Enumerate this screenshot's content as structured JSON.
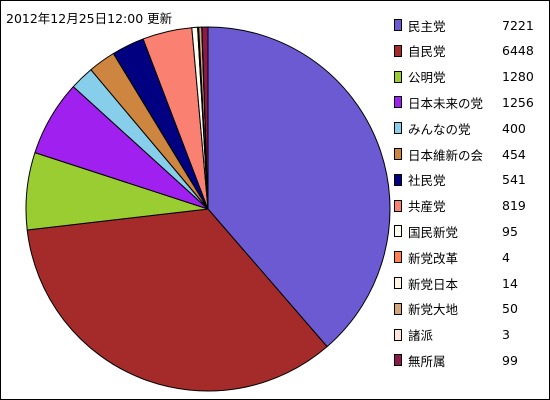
{
  "header": {
    "timestamp": "2012年12月25日12:00 更新"
  },
  "chart_data": {
    "type": "pie",
    "title": "",
    "legend_position": "right",
    "slices": [
      {
        "label": "民主党",
        "value": 7221,
        "color": "#6b5ad1"
      },
      {
        "label": "自民党",
        "value": 6448,
        "color": "#a52a2a"
      },
      {
        "label": "公明党",
        "value": 1280,
        "color": "#9acd32"
      },
      {
        "label": "日本未来の党",
        "value": 1256,
        "color": "#a020f0"
      },
      {
        "label": "みんなの党",
        "value": 400,
        "color": "#87ceeb"
      },
      {
        "label": "日本維新の会",
        "value": 454,
        "color": "#cd853f"
      },
      {
        "label": "社民党",
        "value": 541,
        "color": "#000080"
      },
      {
        "label": "共産党",
        "value": 819,
        "color": "#fa8072"
      },
      {
        "label": "国民新党",
        "value": 95,
        "color": "#fffff0"
      },
      {
        "label": "新党改革",
        "value": 4,
        "color": "#ff7f50"
      },
      {
        "label": "新党日本",
        "value": 14,
        "color": "#fff5e1"
      },
      {
        "label": "新党大地",
        "value": 50,
        "color": "#d2a679"
      },
      {
        "label": "諸派",
        "value": 3,
        "color": "#ffe4d9"
      },
      {
        "label": "無所属",
        "value": 99,
        "color": "#8b1a4a"
      }
    ]
  }
}
